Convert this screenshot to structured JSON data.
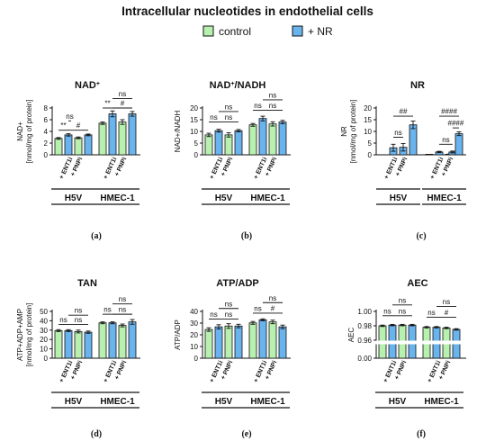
{
  "title": "Intracellular nucleotides in endothelial cells",
  "legend": [
    {
      "name": "control",
      "color": "#b8f0b0"
    },
    {
      "name": "+ NR",
      "color": "#6ab4ee"
    }
  ],
  "chart_data": [
    {
      "type": "bar",
      "label": "(a)",
      "title": "NAD",
      "title_sup": "+",
      "ylabel": [
        "NAD+",
        "[nmol/mg of protein]"
      ],
      "ylim": [
        0,
        8
      ],
      "yticks": [
        0,
        2,
        4,
        6,
        8
      ],
      "groups": [
        "H5V",
        "HMEC-1"
      ],
      "conditions": [
        "",
        "+ ENT1i",
        "+ PNPi"
      ],
      "bars": [
        {
          "g": 0,
          "pos": 0,
          "s": "control",
          "v": 2.8,
          "e": 0.15
        },
        {
          "g": 0,
          "pos": 1,
          "s": "+ NR",
          "v": 3.4,
          "e": 0.2
        },
        {
          "g": 0,
          "pos": 2,
          "s": "control",
          "v": 2.9,
          "e": 0.15
        },
        {
          "g": 0,
          "pos": 3,
          "s": "+ NR",
          "v": 3.4,
          "e": 0.15
        },
        {
          "g": 1,
          "pos": 0,
          "s": "control",
          "v": 5.4,
          "e": 0.2
        },
        {
          "g": 1,
          "pos": 1,
          "s": "+ NR",
          "v": 7.0,
          "e": 0.5
        },
        {
          "g": 1,
          "pos": 2,
          "s": "control",
          "v": 5.6,
          "e": 0.4
        },
        {
          "g": 1,
          "pos": 3,
          "s": "+ NR",
          "v": 7.0,
          "e": 0.4
        }
      ],
      "annotations": [
        {
          "g": 0,
          "a": 0,
          "b": 1,
          "y": 4.2,
          "text": "**"
        },
        {
          "g": 0,
          "a": 1,
          "b": 3,
          "y": 4.2,
          "text": "#"
        },
        {
          "g": 0,
          "a": 1,
          "b": 4,
          "y": 5.8,
          "text": "ns",
          "span": true
        },
        {
          "g": 1,
          "a": 0,
          "b": 1,
          "y": 8.0,
          "text": "**"
        },
        {
          "g": 1,
          "a": 1,
          "b": 3,
          "y": 8.0,
          "text": "#"
        },
        {
          "g": 1,
          "a": 1,
          "b": 3,
          "y": 9.6,
          "text": "ns"
        }
      ]
    },
    {
      "type": "bar",
      "label": "(b)",
      "title": "NAD",
      "title_sup": "+",
      "title_rest": "/NADH",
      "ylabel": [
        "NAD+/NADH"
      ],
      "ylim": [
        0,
        20
      ],
      "yticks": [
        0,
        5,
        10,
        15,
        20
      ],
      "groups": [
        "H5V",
        "HMEC-1"
      ],
      "conditions": [
        "",
        "+ ENT1i",
        "+ PNPi"
      ],
      "bars": [
        {
          "g": 0,
          "pos": 0,
          "s": "control",
          "v": 8.5,
          "e": 0.7
        },
        {
          "g": 0,
          "pos": 1,
          "s": "+ NR",
          "v": 10.3,
          "e": 0.6
        },
        {
          "g": 0,
          "pos": 2,
          "s": "control",
          "v": 8.5,
          "e": 0.9
        },
        {
          "g": 0,
          "pos": 3,
          "s": "+ NR",
          "v": 10.3,
          "e": 0.5
        },
        {
          "g": 1,
          "pos": 0,
          "s": "control",
          "v": 12.8,
          "e": 0.6
        },
        {
          "g": 1,
          "pos": 1,
          "s": "+ NR",
          "v": 15.5,
          "e": 1.0
        },
        {
          "g": 1,
          "pos": 2,
          "s": "control",
          "v": 13.2,
          "e": 0.9
        },
        {
          "g": 1,
          "pos": 3,
          "s": "+ NR",
          "v": 14.0,
          "e": 0.7
        }
      ],
      "annotations": [
        {
          "g": 0,
          "a": 0,
          "b": 1,
          "y": 14.0,
          "text": "ns"
        },
        {
          "g": 0,
          "a": 1,
          "b": 3,
          "y": 14.0,
          "text": "ns"
        },
        {
          "g": 0,
          "a": 1,
          "b": 3,
          "y": 18.5,
          "text": "ns"
        },
        {
          "g": 1,
          "a": 0,
          "b": 1,
          "y": 19.0,
          "text": "ns"
        },
        {
          "g": 1,
          "a": 1,
          "b": 3,
          "y": 19.0,
          "text": "ns"
        },
        {
          "g": 1,
          "a": 1,
          "b": 3,
          "y": 23.5,
          "text": "ns"
        }
      ]
    },
    {
      "type": "bar",
      "label": "(c)",
      "title": "NR",
      "ylabel": [
        "NR",
        "[nmol/mg of protein]"
      ],
      "ylim": [
        0,
        20
      ],
      "yticks": [
        0,
        5,
        10,
        15,
        20
      ],
      "groups": [
        "H5V",
        "HMEC-1"
      ],
      "conditions": [
        "",
        "+ ENT1i",
        "+ PNPi"
      ],
      "bars": [
        {
          "g": 0,
          "pos": 1,
          "s": "+ NR",
          "v": 3.0,
          "e": 1.5
        },
        {
          "g": 0,
          "pos": 2,
          "s": "+ NR",
          "v": 3.2,
          "e": 1.6
        },
        {
          "g": 0,
          "pos": 3,
          "s": "+ NR",
          "v": 12.8,
          "e": 1.6
        },
        {
          "g": 1,
          "pos": 0,
          "s": "control",
          "v": 0.1,
          "e": 0.05
        },
        {
          "g": 1,
          "pos": 1,
          "s": "+ NR",
          "v": 1.2,
          "e": 0.3
        },
        {
          "g": 1,
          "pos": 2,
          "s": "control",
          "v": 0.2,
          "e": 0.1
        },
        {
          "g": 1,
          "pos": 2.35,
          "s": "+ NR",
          "v": 1.2,
          "e": 0.4
        },
        {
          "g": 1,
          "pos": 3,
          "s": "+ NR",
          "v": 9.0,
          "e": 0.8
        }
      ],
      "annotations": [
        {
          "g": 0,
          "a": 1,
          "b": 2,
          "y": 7.5,
          "text": "ns"
        },
        {
          "g": 0,
          "a": 1,
          "b": 3,
          "y": 16.5,
          "text": "##"
        },
        {
          "g": 1,
          "a": 1,
          "b": 2.35,
          "y": 4.5,
          "text": "ns"
        },
        {
          "g": 1,
          "a": 2.35,
          "b": 3,
          "y": 11.5,
          "text": "####"
        },
        {
          "g": 1,
          "a": 1,
          "b": 3,
          "y": 16.5,
          "text": "####"
        }
      ]
    },
    {
      "type": "bar",
      "label": "(d)",
      "title": "TAN",
      "ylabel": [
        "ATP+ADP+AMP",
        "[nmol/mg of protein]"
      ],
      "ylim": [
        0,
        50
      ],
      "yticks": [
        0,
        10,
        20,
        30,
        40,
        50
      ],
      "groups": [
        "H5V",
        "HMEC-1"
      ],
      "conditions": [
        "",
        "+ ENT1i",
        "+ PNPi"
      ],
      "bars": [
        {
          "g": 0,
          "pos": 0,
          "s": "control",
          "v": 29.5,
          "e": 1.0
        },
        {
          "g": 0,
          "pos": 1,
          "s": "+ NR",
          "v": 29.5,
          "e": 1.0
        },
        {
          "g": 0,
          "pos": 2,
          "s": "control",
          "v": 28.5,
          "e": 1.5
        },
        {
          "g": 0,
          "pos": 3,
          "s": "+ NR",
          "v": 27.8,
          "e": 1.2
        },
        {
          "g": 1,
          "pos": 0,
          "s": "control",
          "v": 37.8,
          "e": 1.0
        },
        {
          "g": 1,
          "pos": 1,
          "s": "+ NR",
          "v": 37.8,
          "e": 1.0
        },
        {
          "g": 1,
          "pos": 2,
          "s": "control",
          "v": 35.0,
          "e": 1.5
        },
        {
          "g": 1,
          "pos": 3,
          "s": "+ NR",
          "v": 38.8,
          "e": 2.5
        }
      ],
      "annotations": [
        {
          "g": 0,
          "a": 0,
          "b": 1,
          "y": 36.0,
          "text": "ns"
        },
        {
          "g": 0,
          "a": 1,
          "b": 3,
          "y": 36.0,
          "text": "ns"
        },
        {
          "g": 0,
          "a": 1,
          "b": 3,
          "y": 46.0,
          "text": "ns"
        },
        {
          "g": 1,
          "a": 0,
          "b": 1,
          "y": 47.0,
          "text": "ns"
        },
        {
          "g": 1,
          "a": 1,
          "b": 3,
          "y": 47.0,
          "text": "ns"
        },
        {
          "g": 1,
          "a": 1,
          "b": 3,
          "y": 58.0,
          "text": "ns"
        }
      ]
    },
    {
      "type": "bar",
      "label": "(e)",
      "title": "ATP/ADP",
      "ylabel": [
        "ATP/ADP"
      ],
      "ylim": [
        0,
        40
      ],
      "yticks": [
        0,
        10,
        20,
        30,
        40
      ],
      "groups": [
        "H5V",
        "HMEC-1"
      ],
      "conditions": [
        "",
        "+ ENT1i",
        "+ PNPi"
      ],
      "bars": [
        {
          "g": 0,
          "pos": 0,
          "s": "control",
          "v": 24.5,
          "e": 1.5
        },
        {
          "g": 0,
          "pos": 1,
          "s": "+ NR",
          "v": 26.8,
          "e": 1.8
        },
        {
          "g": 0,
          "pos": 2,
          "s": "control",
          "v": 27.5,
          "e": 2.0
        },
        {
          "g": 0,
          "pos": 3,
          "s": "+ NR",
          "v": 27.5,
          "e": 1.5
        },
        {
          "g": 1,
          "pos": 0,
          "s": "control",
          "v": 30.2,
          "e": 1.2
        },
        {
          "g": 1,
          "pos": 1,
          "s": "+ NR",
          "v": 32.8,
          "e": 0.8
        },
        {
          "g": 1,
          "pos": 2,
          "s": "control",
          "v": 31.0,
          "e": 1.5
        },
        {
          "g": 1,
          "pos": 3,
          "s": "+ NR",
          "v": 26.8,
          "e": 1.5
        }
      ],
      "annotations": [
        {
          "g": 0,
          "a": 0,
          "b": 1,
          "y": 33.5,
          "text": "ns"
        },
        {
          "g": 0,
          "a": 1,
          "b": 3,
          "y": 33.5,
          "text": "ns"
        },
        {
          "g": 0,
          "a": 1,
          "b": 3,
          "y": 42.5,
          "text": "ns"
        },
        {
          "g": 1,
          "a": 0,
          "b": 1,
          "y": 38.5,
          "text": "ns"
        },
        {
          "g": 1,
          "a": 1,
          "b": 3,
          "y": 38.5,
          "text": "#"
        },
        {
          "g": 1,
          "a": 1,
          "b": 3,
          "y": 47.5,
          "text": "ns"
        }
      ]
    },
    {
      "type": "bar",
      "label": "(f)",
      "title": "AEC",
      "ylabel": [
        "AEC"
      ],
      "ylim": [
        0,
        1.0
      ],
      "yticks": [
        0.0,
        0.96,
        0.98,
        1.0
      ],
      "yticklabels": [
        "0.00",
        "0.96",
        "0.98",
        "1.00"
      ],
      "axis_break": [
        0.0,
        0.96
      ],
      "groups": [
        "H5V",
        "HMEC-1"
      ],
      "conditions": [
        "",
        "+ ENT1i",
        "+ PNPi"
      ],
      "bars": [
        {
          "g": 0,
          "pos": 0,
          "s": "control",
          "v": 0.98,
          "e": 0.001
        },
        {
          "g": 0,
          "pos": 1,
          "s": "+ NR",
          "v": 0.981,
          "e": 0.001
        },
        {
          "g": 0,
          "pos": 2,
          "s": "control",
          "v": 0.981,
          "e": 0.001
        },
        {
          "g": 0,
          "pos": 3,
          "s": "+ NR",
          "v": 0.981,
          "e": 0.001
        },
        {
          "g": 1,
          "pos": 0,
          "s": "control",
          "v": 0.978,
          "e": 0.001
        },
        {
          "g": 1,
          "pos": 1,
          "s": "+ NR",
          "v": 0.978,
          "e": 0.001
        },
        {
          "g": 1,
          "pos": 2,
          "s": "control",
          "v": 0.977,
          "e": 0.001
        },
        {
          "g": 1,
          "pos": 3,
          "s": "+ NR",
          "v": 0.975,
          "e": 0.001
        }
      ],
      "annotations": [
        {
          "g": 0,
          "a": 0,
          "b": 1,
          "y": 0.994,
          "text": "ns"
        },
        {
          "g": 0,
          "a": 1,
          "b": 3,
          "y": 0.994,
          "text": "ns"
        },
        {
          "g": 0,
          "a": 1,
          "b": 3,
          "y": 1.009,
          "text": "ns"
        },
        {
          "g": 1,
          "a": 0,
          "b": 1,
          "y": 0.992,
          "text": "ns"
        },
        {
          "g": 1,
          "a": 1,
          "b": 3,
          "y": 0.992,
          "text": "#"
        },
        {
          "g": 1,
          "a": 1,
          "b": 3,
          "y": 1.007,
          "text": "ns"
        }
      ]
    }
  ]
}
